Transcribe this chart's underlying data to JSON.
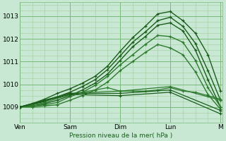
{
  "background_color": "#c8e8d4",
  "grid_major_color": "#7ab87a",
  "grid_minor_color": "#a0cca0",
  "line_color_dark": "#1a5c1a",
  "line_color_mid": "#2d7a2d",
  "xlabel": "Pression niveau de la mer( hPa )",
  "xtick_labels": [
    "Ven",
    "Sam",
    "Dim",
    "Lun",
    "M"
  ],
  "xtick_positions": [
    0,
    24,
    48,
    72,
    96
  ],
  "ylim": [
    1008.3,
    1013.6
  ],
  "yticks": [
    1009,
    1010,
    1011,
    1012,
    1013
  ],
  "xlim": [
    0,
    97
  ],
  "series": [
    {
      "x": [
        0,
        6,
        12,
        18,
        24,
        30,
        36,
        42,
        48,
        54,
        60,
        66,
        72,
        78,
        84,
        90,
        96
      ],
      "y": [
        1009.0,
        1009.15,
        1009.35,
        1009.6,
        1009.8,
        1010.05,
        1010.35,
        1010.8,
        1011.45,
        1012.05,
        1012.55,
        1013.1,
        1013.2,
        1012.8,
        1012.25,
        1011.3,
        1009.7
      ],
      "style": "dark",
      "lw": 1.0
    },
    {
      "x": [
        0,
        6,
        12,
        18,
        24,
        30,
        36,
        42,
        48,
        54,
        60,
        66,
        72,
        78,
        84,
        90,
        96
      ],
      "y": [
        1009.0,
        1009.1,
        1009.25,
        1009.45,
        1009.65,
        1009.9,
        1010.2,
        1010.65,
        1011.25,
        1011.85,
        1012.3,
        1012.8,
        1012.95,
        1012.55,
        1011.8,
        1010.6,
        1009.3
      ],
      "style": "dark",
      "lw": 1.0
    },
    {
      "x": [
        0,
        6,
        12,
        18,
        24,
        30,
        36,
        42,
        48,
        54,
        60,
        66,
        72,
        78,
        84,
        90,
        96
      ],
      "y": [
        1009.0,
        1009.05,
        1009.15,
        1009.3,
        1009.5,
        1009.75,
        1010.05,
        1010.45,
        1011.05,
        1011.65,
        1012.1,
        1012.6,
        1012.7,
        1012.35,
        1011.5,
        1010.2,
        1009.0
      ],
      "style": "dark",
      "lw": 1.0
    },
    {
      "x": [
        0,
        6,
        12,
        18,
        24,
        30,
        36,
        42,
        48,
        54,
        60,
        66,
        72,
        78,
        84,
        90,
        96
      ],
      "y": [
        1009.0,
        1009.05,
        1009.1,
        1009.2,
        1009.45,
        1009.65,
        1009.95,
        1010.35,
        1010.85,
        1011.3,
        1011.75,
        1012.15,
        1012.1,
        1011.85,
        1011.05,
        1009.85,
        1009.0
      ],
      "style": "mid",
      "lw": 1.0
    },
    {
      "x": [
        0,
        6,
        12,
        18,
        24,
        30,
        36,
        42,
        48,
        54,
        60,
        66,
        72,
        78,
        84,
        90,
        96
      ],
      "y": [
        1009.0,
        1009.0,
        1009.05,
        1009.1,
        1009.3,
        1009.5,
        1009.75,
        1010.1,
        1010.6,
        1011.0,
        1011.4,
        1011.75,
        1011.6,
        1011.3,
        1010.55,
        1009.55,
        1008.9
      ],
      "style": "mid",
      "lw": 1.0
    },
    {
      "x": [
        0,
        12,
        24,
        36,
        42,
        48,
        54,
        60,
        66,
        72,
        78,
        84,
        90,
        96
      ],
      "y": [
        1009.0,
        1009.2,
        1009.55,
        1009.75,
        1009.85,
        1009.7,
        1009.7,
        1009.7,
        1009.75,
        1009.85,
        1009.7,
        1009.65,
        1009.5,
        1009.35
      ],
      "style": "mid",
      "lw": 0.9
    },
    {
      "x": [
        0,
        24,
        48,
        72,
        96
      ],
      "y": [
        1009.0,
        1009.6,
        1009.7,
        1009.9,
        1009.3
      ],
      "style": "mid",
      "lw": 0.9
    },
    {
      "x": [
        0,
        24,
        48,
        72,
        96
      ],
      "y": [
        1009.0,
        1009.6,
        1009.6,
        1009.75,
        1008.85
      ],
      "style": "dark",
      "lw": 0.9
    },
    {
      "x": [
        0,
        24,
        48,
        72,
        96
      ],
      "y": [
        1009.0,
        1009.55,
        1009.5,
        1009.65,
        1008.7
      ],
      "style": "dark",
      "lw": 0.9
    }
  ]
}
